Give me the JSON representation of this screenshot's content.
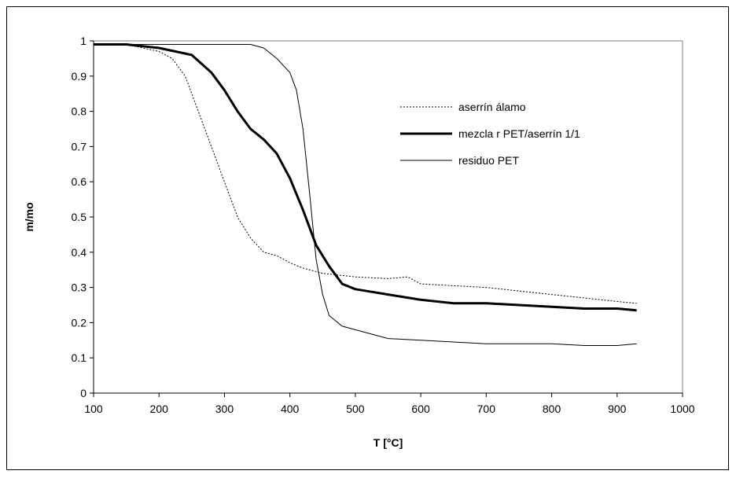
{
  "chart_data": {
    "type": "line",
    "xlabel": "T [°C]",
    "ylabel": "m/mo",
    "xlim": [
      100,
      1000
    ],
    "ylim": [
      0,
      1
    ],
    "xticks": [
      "100",
      "200",
      "300",
      "400",
      "500",
      "600",
      "700",
      "800",
      "900",
      "1000"
    ],
    "yticks": [
      "0",
      "0.1",
      "0.2",
      "0.3",
      "0.4",
      "0.5",
      "0.6",
      "0.7",
      "0.8",
      "0.9",
      "1"
    ],
    "grid": false,
    "legend_position": "right",
    "series": [
      {
        "name": "aserrín álamo",
        "style": "dotted",
        "color": "#000000",
        "x": [
          100,
          150,
          200,
          220,
          240,
          260,
          280,
          300,
          320,
          340,
          360,
          380,
          400,
          420,
          450,
          500,
          550,
          580,
          600,
          650,
          700,
          750,
          800,
          850,
          900,
          930
        ],
        "y": [
          0.99,
          0.99,
          0.97,
          0.95,
          0.9,
          0.8,
          0.7,
          0.6,
          0.5,
          0.44,
          0.4,
          0.39,
          0.37,
          0.355,
          0.34,
          0.33,
          0.325,
          0.33,
          0.31,
          0.305,
          0.3,
          0.29,
          0.28,
          0.27,
          0.26,
          0.255
        ]
      },
      {
        "name": "mezcla r PET/aserrín 1/1",
        "style": "thick",
        "color": "#000000",
        "x": [
          100,
          150,
          200,
          250,
          280,
          300,
          320,
          340,
          360,
          380,
          400,
          420,
          440,
          460,
          480,
          500,
          550,
          600,
          650,
          700,
          750,
          800,
          850,
          900,
          930
        ],
        "y": [
          0.99,
          0.99,
          0.98,
          0.96,
          0.91,
          0.86,
          0.8,
          0.75,
          0.72,
          0.68,
          0.61,
          0.52,
          0.42,
          0.36,
          0.31,
          0.295,
          0.28,
          0.265,
          0.255,
          0.255,
          0.25,
          0.245,
          0.24,
          0.24,
          0.235
        ]
      },
      {
        "name": "residuo PET",
        "style": "thin",
        "color": "#000000",
        "x": [
          100,
          150,
          200,
          250,
          300,
          340,
          360,
          380,
          400,
          410,
          420,
          430,
          440,
          450,
          460,
          480,
          500,
          550,
          600,
          650,
          700,
          750,
          800,
          850,
          900,
          930
        ],
        "y": [
          0.99,
          0.99,
          0.99,
          0.99,
          0.99,
          0.99,
          0.98,
          0.95,
          0.91,
          0.86,
          0.75,
          0.57,
          0.38,
          0.28,
          0.22,
          0.19,
          0.18,
          0.155,
          0.15,
          0.145,
          0.14,
          0.14,
          0.14,
          0.135,
          0.135,
          0.14
        ]
      }
    ]
  }
}
